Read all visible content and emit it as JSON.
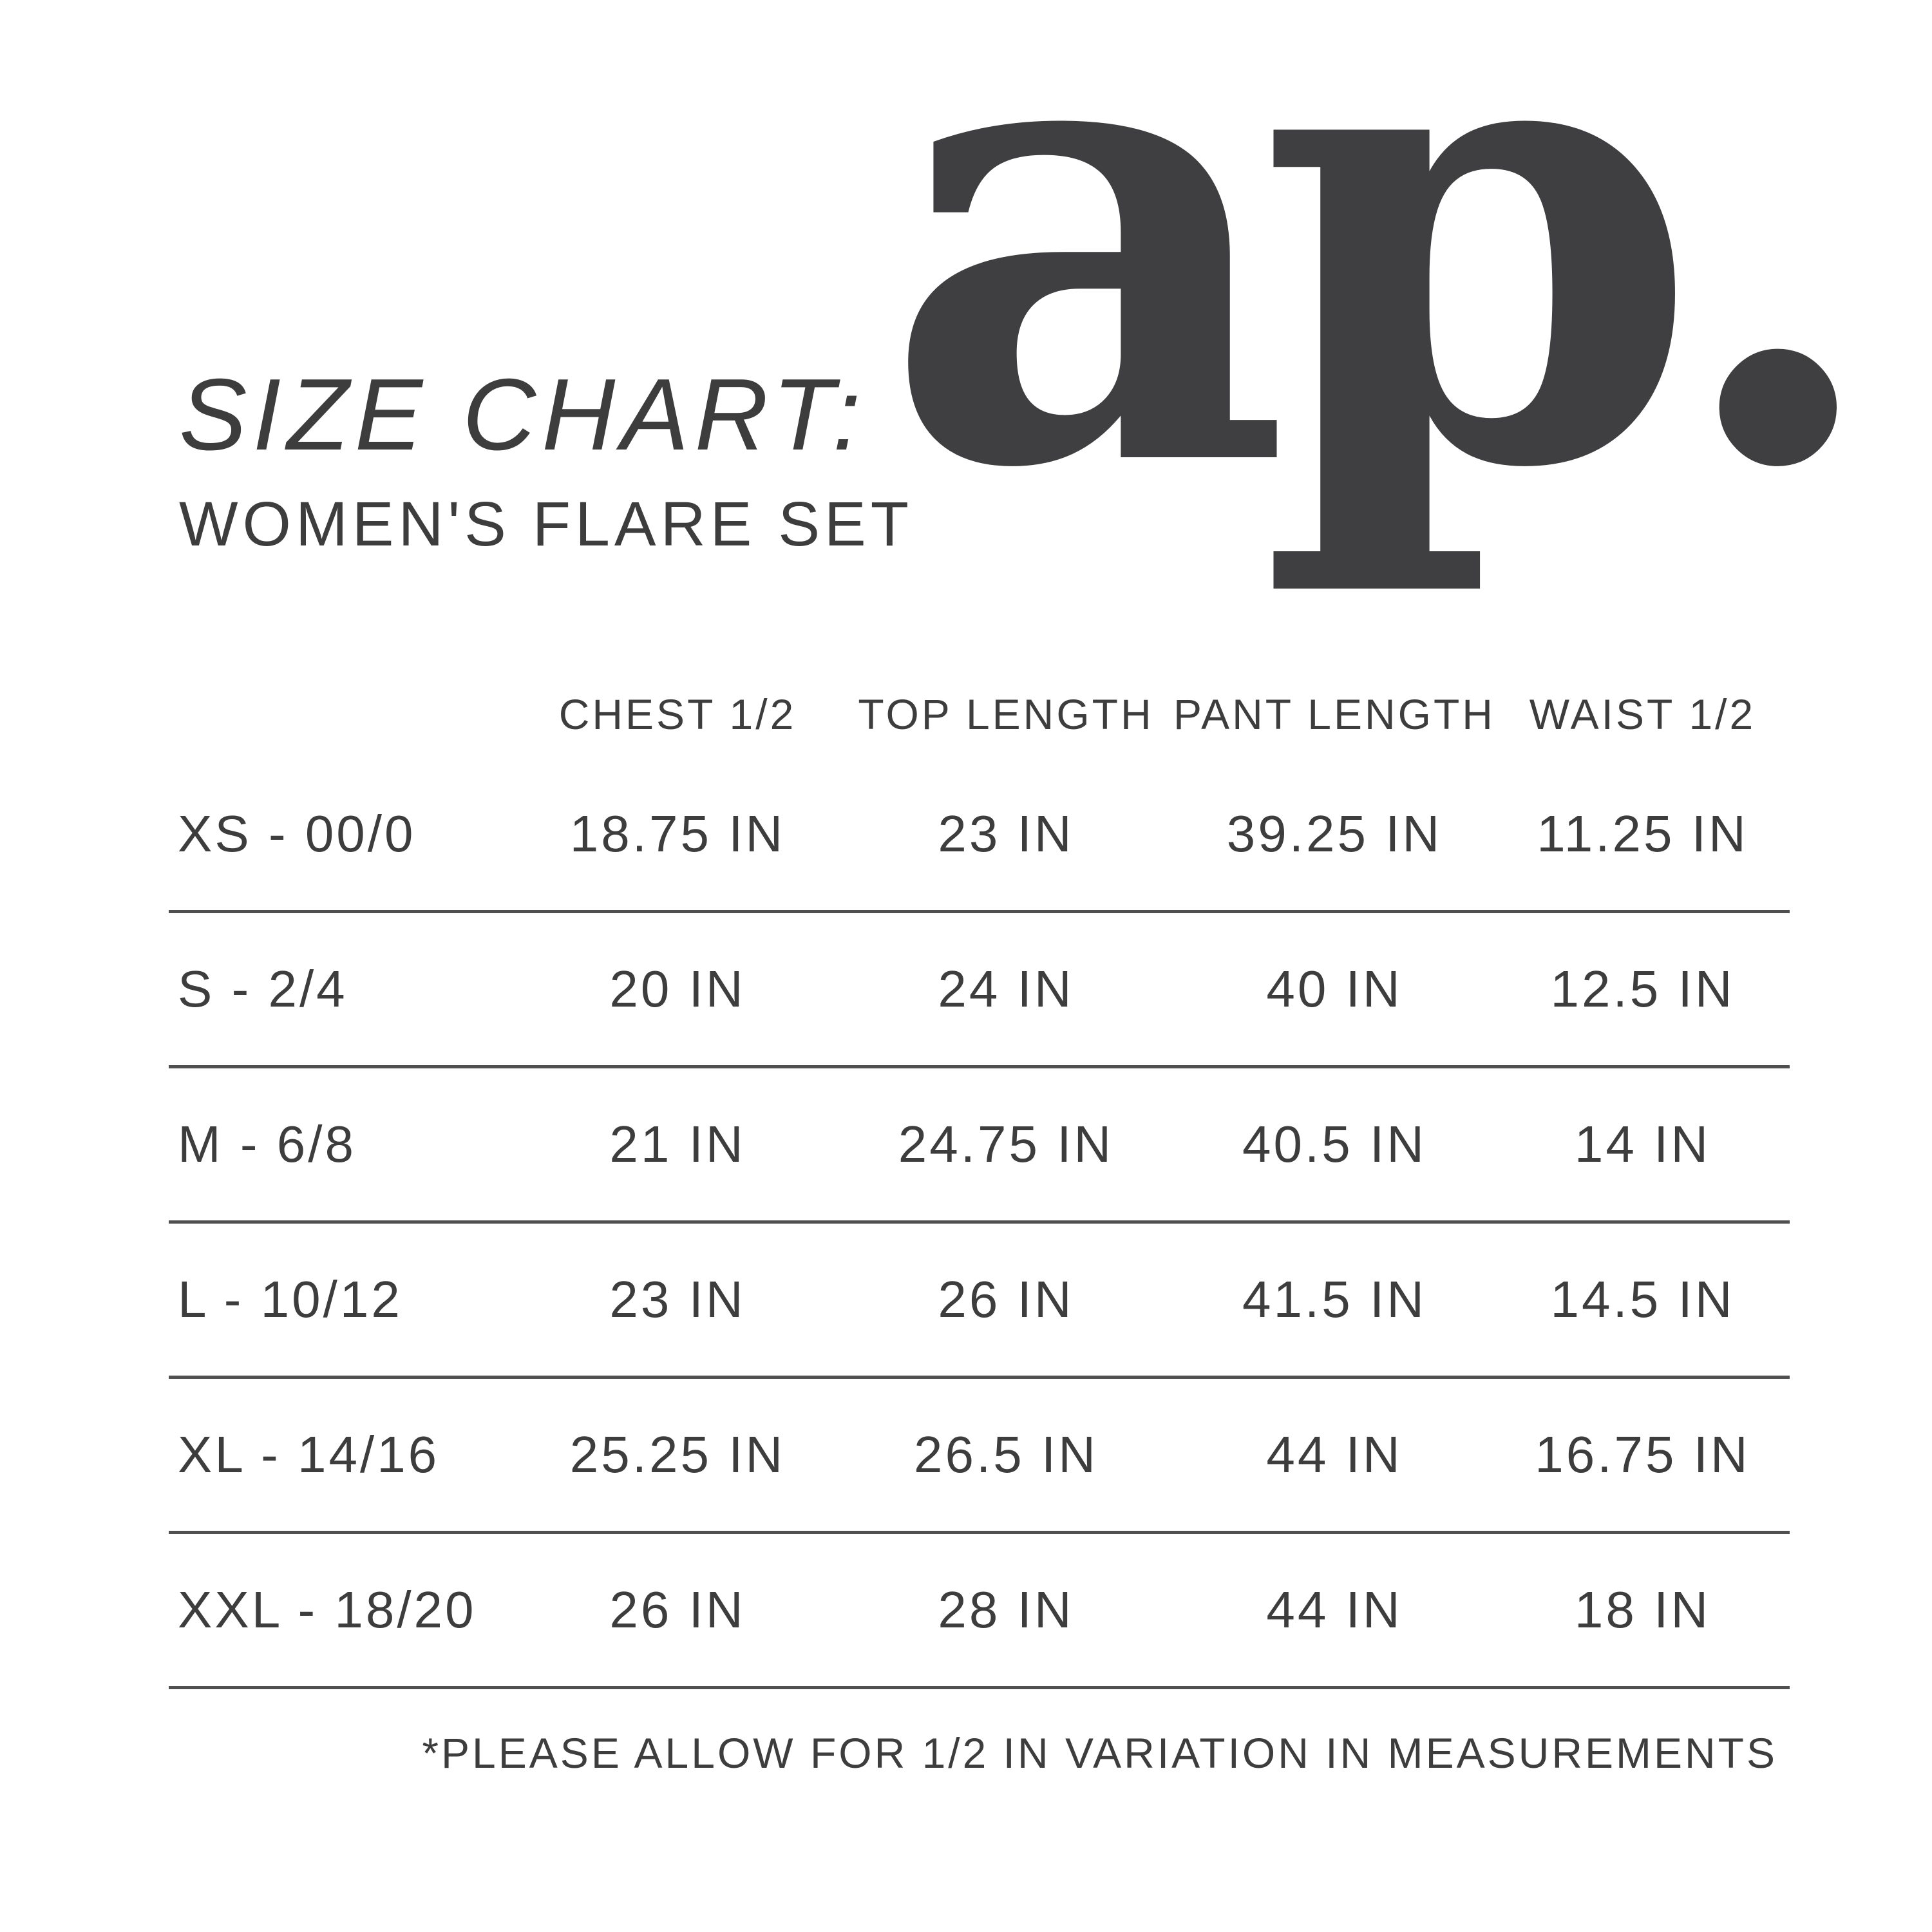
{
  "header": {
    "title": "SIZE CHART:",
    "subtitle": "WOMEN'S FLARE SET",
    "logo_text": "ap."
  },
  "chart_data": {
    "type": "table",
    "title": "SIZE CHART: WOMEN'S FLARE SET",
    "columns": [
      "CHEST 1/2",
      "TOP LENGTH",
      "PANT LENGTH",
      "WAIST 1/2"
    ],
    "rows": [
      {
        "size": "XS - 00/0",
        "values": [
          "18.75 IN",
          "23 IN",
          "39.25 IN",
          "11.25 IN"
        ]
      },
      {
        "size": "S - 2/4",
        "values": [
          "20 IN",
          "24 IN",
          "40 IN",
          "12.5 IN"
        ]
      },
      {
        "size": "M - 6/8",
        "values": [
          "21 IN",
          "24.75 IN",
          "40.5 IN",
          "14 IN"
        ]
      },
      {
        "size": "L - 10/12",
        "values": [
          "23 IN",
          "26 IN",
          "41.5 IN",
          "14.5 IN"
        ]
      },
      {
        "size": "XL - 14/16",
        "values": [
          "25.25 IN",
          "26.5 IN",
          "44 IN",
          "16.75 IN"
        ]
      },
      {
        "size": "XXL - 18/20",
        "values": [
          "26 IN",
          "28 IN",
          "44 IN",
          "18 IN"
        ]
      }
    ],
    "footnote": "*PLEASE ALLOW FOR 1/2 IN VARIATION IN MEASUREMENTS"
  },
  "colors": {
    "text": "#3d3d3d",
    "rule_line": "#4f4f4f",
    "logo": "#3f3f42",
    "background": "#ffffff"
  }
}
